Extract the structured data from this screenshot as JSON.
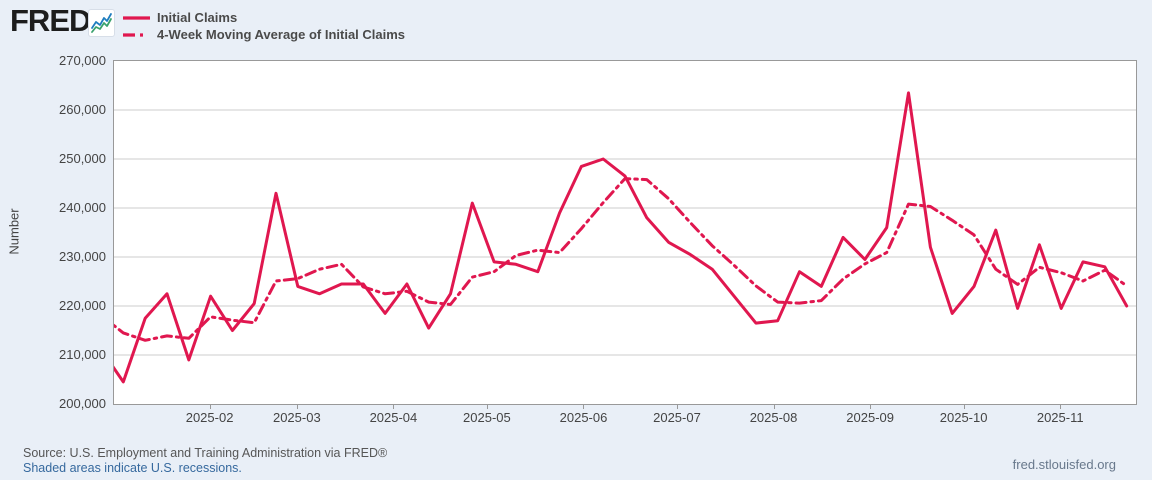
{
  "header": {
    "logo_text": "FRED",
    "logo_reg": "®",
    "logo_icon": "fred-zigzag-chart-icon"
  },
  "legend": {
    "items": [
      {
        "label": "Initial Claims",
        "style": "solid"
      },
      {
        "label": "4-Week Moving Average of Initial Claims",
        "style": "dashed"
      }
    ]
  },
  "y_axis": {
    "label": "Number",
    "ticks": [
      {
        "value": 270000,
        "label": "270,000"
      },
      {
        "value": 260000,
        "label": "260,000"
      },
      {
        "value": 250000,
        "label": "250,000"
      },
      {
        "value": 240000,
        "label": "240,000"
      },
      {
        "value": 230000,
        "label": "230,000"
      },
      {
        "value": 220000,
        "label": "220,000"
      },
      {
        "value": 210000,
        "label": "210,000"
      },
      {
        "value": 200000,
        "label": "200,000"
      }
    ]
  },
  "x_axis": {
    "ticks": [
      {
        "date": "2025-02-01",
        "label": "2025-02"
      },
      {
        "date": "2025-03-01",
        "label": "2025-03"
      },
      {
        "date": "2025-04-01",
        "label": "2025-04"
      },
      {
        "date": "2025-05-01",
        "label": "2025-05"
      },
      {
        "date": "2025-06-01",
        "label": "2025-06"
      },
      {
        "date": "2025-07-01",
        "label": "2025-07"
      },
      {
        "date": "2025-08-01",
        "label": "2025-08"
      },
      {
        "date": "2025-09-01",
        "label": "2025-09"
      },
      {
        "date": "2025-10-01",
        "label": "2025-10"
      },
      {
        "date": "2025-11-01",
        "label": "2025-11"
      }
    ]
  },
  "footer": {
    "source_line": "Source: U.S. Employment and Training Administration via FRED®",
    "recessions_note": "Shaded areas indicate U.S. recessions.",
    "site": "fred.stlouisfed.org"
  },
  "colors": {
    "line": "#e0174f",
    "grid": "#cccccc",
    "plot_border": "#999999",
    "page_bg": "#e9eff7",
    "link": "#36699e",
    "logo_blue": "#1f7dbf",
    "logo_green": "#3aa26d"
  },
  "chart_data": {
    "type": "line",
    "title": "Initial Claims",
    "xlabel": "",
    "ylabel": "Number",
    "ylim": [
      200000,
      270000
    ],
    "x_domain": [
      "2025-01-01",
      "2025-11-25"
    ],
    "frequency": "weekly",
    "grid": "horizontal",
    "legend_position": "top-left",
    "x_start": "2024-12-28",
    "series": [
      {
        "name": "Initial Claims",
        "style": "solid",
        "color": "#e0174f",
        "values": [
          211000,
          204500,
          217500,
          222500,
          209000,
          222000,
          215000,
          220500,
          243000,
          224000,
          222500,
          224500,
          224500,
          218500,
          224500,
          215500,
          222500,
          241000,
          229000,
          228500,
          227000,
          239000,
          248500,
          250000,
          246500,
          238000,
          233000,
          230500,
          227500,
          222000,
          216500,
          217000,
          227000,
          224000,
          234000,
          229500,
          236000,
          263500,
          232000,
          218500,
          224000,
          235500,
          219500,
          232500,
          219500,
          229000,
          228000,
          220000
        ]
      },
      {
        "name": "4-Week Moving Average of Initial Claims",
        "style": "dashed",
        "color": "#e0174f",
        "values": [
          218000,
          214500,
          213000,
          213900,
          213400,
          217800,
          217100,
          216600,
          225100,
          225600,
          227500,
          228500,
          223900,
          222500,
          223000,
          220800,
          220300,
          225900,
          227000,
          230300,
          231400,
          230900,
          235800,
          241100,
          246000,
          245800,
          241900,
          237000,
          232300,
          228300,
          224100,
          220800,
          220600,
          221100,
          225500,
          228600,
          230900,
          240800,
          240300,
          237500,
          234500,
          227500,
          224400,
          227900,
          226800,
          225100,
          227300,
          224100
        ]
      }
    ]
  }
}
